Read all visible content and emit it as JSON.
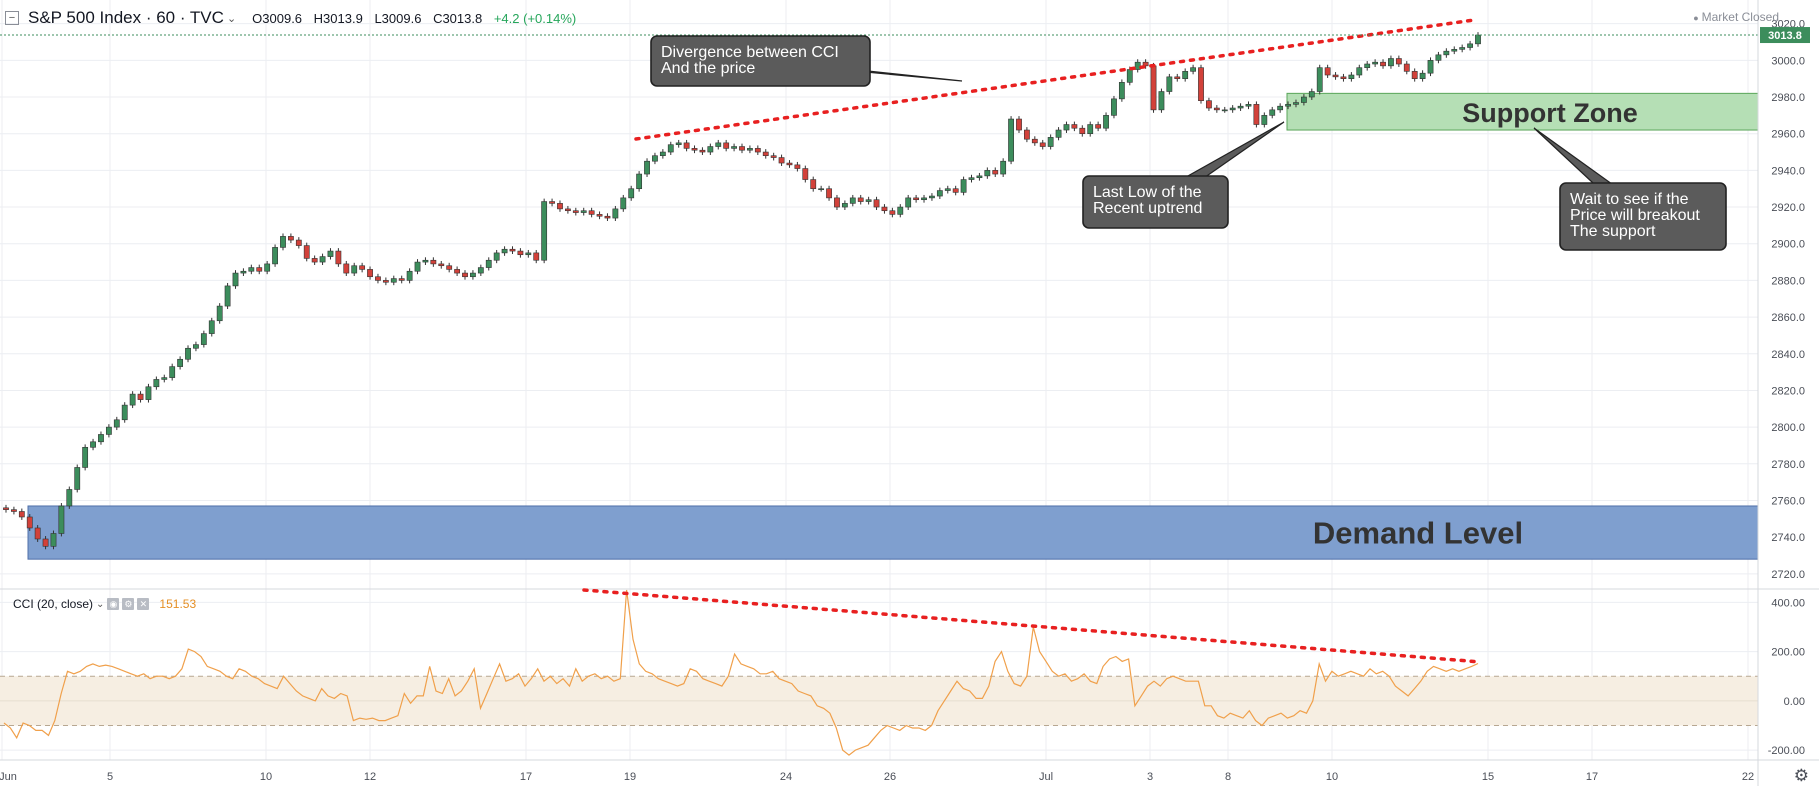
{
  "header": {
    "symbol": "S&P 500 Index · 60 · TVC",
    "open": "O3009.6",
    "high": "H3013.9",
    "low": "L3009.6",
    "close": "C3013.8",
    "change": "+4.2 (+0.14%)",
    "market_status": "Market Closed"
  },
  "indicator": {
    "label": "CCI (20, close)",
    "value": "151.53"
  },
  "price_axis": {
    "ticks": [
      "3020.0",
      "3000.0",
      "2980.0",
      "2960.0",
      "2940.0",
      "2920.0",
      "2900.0",
      "2880.0",
      "2860.0",
      "2840.0",
      "2820.0",
      "2800.0",
      "2780.0",
      "2760.0",
      "2740.0",
      "2720.0"
    ],
    "last_price": "3013.8"
  },
  "cci_axis": {
    "ticks": [
      "400.00",
      "200.00",
      "0.00",
      "-200.00"
    ]
  },
  "time_axis": {
    "ticks": [
      "Jun",
      "5",
      "10",
      "12",
      "17",
      "19",
      "24",
      "26",
      "Jul",
      "3",
      "8",
      "10",
      "15",
      "17",
      "22"
    ]
  },
  "annotations": {
    "divergence": [
      "Divergence between CCI",
      "And the price"
    ],
    "support_zone": "Support Zone",
    "last_low": [
      "Last Low of the",
      "Recent uptrend"
    ],
    "wait": [
      "Wait to see if the",
      "Price will breakout",
      "The support"
    ],
    "demand_level": "Demand Level"
  },
  "colors": {
    "up_candle": "#3c8d5c",
    "down_candle": "#d2413a",
    "cci_line": "#f0a04b",
    "support_zone_fill": "#b5dfb5",
    "demand_zone_fill": "#7f9fcf",
    "divergence_line": "#e82020",
    "callout_fill": "#5b5b5b"
  },
  "chart_data": [
    {
      "type": "candlestick",
      "title": "S&P 500 Index · 60 · TVC",
      "x_axis": "time (hourly, Jun 3 – Jul 12)",
      "ylim": [
        2715,
        3022
      ],
      "zones": [
        {
          "name": "Support Zone",
          "y_range": [
            2962,
            2982
          ]
        },
        {
          "name": "Demand Level",
          "y_range": [
            2728,
            2757
          ]
        }
      ],
      "trendline": {
        "label": "Divergence between CCI And the price",
        "from": [
          2956
        ],
        "to": [
          3020
        ]
      },
      "closes": [
        2755,
        2754,
        2751,
        2745,
        2739,
        2735,
        2742,
        2757,
        2766,
        2778,
        2789,
        2792,
        2796,
        2800,
        2804,
        2812,
        2818,
        2815,
        2822,
        2826,
        2827,
        2833,
        2837,
        2843,
        2845,
        2851,
        2858,
        2866,
        2877,
        2884,
        2885,
        2887,
        2885,
        2889,
        2898,
        2904,
        2902,
        2899,
        2892,
        2890,
        2893,
        2896,
        2889,
        2884,
        2888,
        2886,
        2882,
        2880,
        2879,
        2881,
        2880,
        2885,
        2890,
        2891,
        2889,
        2888,
        2886,
        2884,
        2882,
        2884,
        2887,
        2891,
        2895,
        2897,
        2896,
        2894,
        2895,
        2891,
        2923,
        2922,
        2919,
        2918,
        2917,
        2918,
        2916,
        2915,
        2914,
        2919,
        2925,
        2930,
        2938,
        2945,
        2948,
        2950,
        2954,
        2955,
        2952,
        2951,
        2950,
        2953,
        2955,
        2952,
        2953,
        2951,
        2952,
        2950,
        2948,
        2947,
        2944,
        2943,
        2941,
        2935,
        2930,
        2930,
        2925,
        2920,
        2922,
        2925,
        2923,
        2924,
        2920,
        2918,
        2916,
        2920,
        2925,
        2924,
        2925,
        2926,
        2929,
        2930,
        2928,
        2935,
        2936,
        2937,
        2940,
        2938,
        2945,
        2968,
        2962,
        2957,
        2955,
        2953,
        2958,
        2962,
        2965,
        2963,
        2960,
        2965,
        2963,
        2970,
        2979,
        2988,
        2995,
        2999,
        2997,
        2973,
        2983,
        2991,
        2990,
        2994,
        2996,
        2978,
        2974,
        2973,
        2973,
        2974,
        2975,
        2976,
        2965,
        2970,
        2973,
        2975,
        2976,
        2977,
        2980,
        2983,
        2996,
        2992,
        2991,
        2990,
        2992,
        2996,
        2998,
        2999,
        2997,
        3001,
        2998,
        2994,
        2990,
        2993,
        3000,
        3003,
        3005,
        3006,
        3007,
        3009,
        3013.8
      ]
    },
    {
      "type": "line",
      "title": "CCI (20, close)",
      "ylim": [
        -240,
        450
      ],
      "reference_band": [
        -100,
        100
      ],
      "trendline": {
        "from": 450,
        "to": 160
      },
      "values": [
        -90,
        -110,
        -150,
        -90,
        -100,
        -120,
        -120,
        -140,
        -80,
        30,
        120,
        110,
        120,
        140,
        150,
        140,
        145,
        140,
        130,
        120,
        110,
        100,
        110,
        90,
        100,
        100,
        90,
        100,
        130,
        210,
        200,
        180,
        140,
        130,
        120,
        100,
        90,
        130,
        120,
        100,
        90,
        70,
        60,
        50,
        100,
        70,
        40,
        20,
        10,
        0,
        50,
        20,
        10,
        30,
        20,
        -80,
        -70,
        -75,
        -70,
        -80,
        -80,
        -70,
        -60,
        30,
        -10,
        20,
        20,
        140,
        40,
        30,
        90,
        20,
        40,
        80,
        130,
        -30,
        30,
        90,
        150,
        80,
        90,
        110,
        60,
        90,
        130,
        80,
        100,
        70,
        90,
        60,
        130,
        80,
        100,
        110,
        90,
        100,
        80,
        90,
        450,
        250,
        150,
        120,
        110,
        90,
        80,
        70,
        60,
        70,
        130,
        120,
        90,
        80,
        70,
        60,
        100,
        190,
        150,
        140,
        130,
        110,
        110,
        120,
        90,
        80,
        70,
        40,
        30,
        20,
        -20,
        -30,
        -50,
        -110,
        -200,
        -220,
        -200,
        -190,
        -180,
        -150,
        -120,
        -100,
        -110,
        -120,
        -100,
        -110,
        -110,
        -120,
        -100,
        -40,
        0,
        40,
        80,
        50,
        40,
        10,
        10,
        60,
        160,
        200,
        120,
        70,
        60,
        100,
        300,
        200,
        160,
        120,
        100,
        110,
        80,
        90,
        110,
        80,
        70,
        140,
        170,
        180,
        160,
        170,
        -20,
        20,
        60,
        80,
        60,
        90,
        100,
        90,
        80,
        80,
        80,
        -20,
        -20,
        -60,
        -70,
        -50,
        -60,
        -70,
        -40,
        -80,
        -100,
        -70,
        -60,
        -50,
        -70,
        -60,
        -40,
        -50,
        0,
        150,
        80,
        120,
        100,
        110,
        120,
        110,
        100,
        130,
        110,
        120,
        100,
        60,
        40,
        20,
        50,
        80,
        120,
        140,
        130,
        120,
        130,
        120,
        130,
        140,
        151.53
      ]
    }
  ]
}
